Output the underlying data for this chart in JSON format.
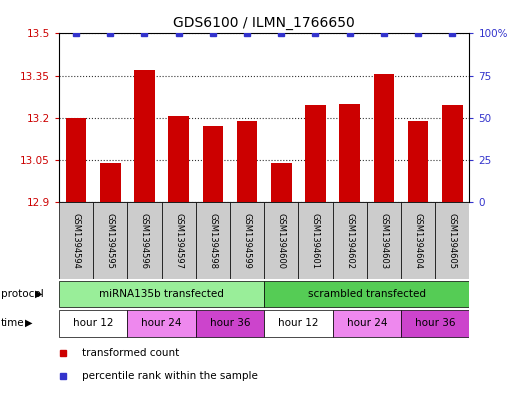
{
  "title": "GDS6100 / ILMN_1766650",
  "samples": [
    "GSM1394594",
    "GSM1394595",
    "GSM1394596",
    "GSM1394597",
    "GSM1394598",
    "GSM1394599",
    "GSM1394600",
    "GSM1394601",
    "GSM1394602",
    "GSM1394603",
    "GSM1394604",
    "GSM1394605"
  ],
  "bar_values": [
    13.2,
    13.04,
    13.37,
    13.205,
    13.17,
    13.19,
    13.04,
    13.245,
    13.25,
    13.355,
    13.19,
    13.245
  ],
  "percentile_values": [
    100,
    100,
    100,
    100,
    100,
    100,
    100,
    100,
    100,
    100,
    100,
    100
  ],
  "bar_color": "#cc0000",
  "percentile_color": "#3333cc",
  "ylim_left": [
    12.9,
    13.5
  ],
  "ylim_right": [
    0,
    100
  ],
  "yticks_left": [
    12.9,
    13.05,
    13.2,
    13.35,
    13.5
  ],
  "yticks_right": [
    0,
    25,
    50,
    75,
    100
  ],
  "ytick_labels_left": [
    "12.9",
    "13.05",
    "13.2",
    "13.35",
    "13.5"
  ],
  "ytick_labels_right": [
    "0",
    "25",
    "50",
    "75",
    "100%"
  ],
  "protocol_groups": [
    {
      "label": "miRNA135b transfected",
      "start": 0,
      "end": 6,
      "color": "#99ee99"
    },
    {
      "label": "scrambled transfected",
      "start": 6,
      "end": 12,
      "color": "#55cc55"
    }
  ],
  "time_groups": [
    {
      "label": "hour 12",
      "start": 0,
      "end": 2,
      "color": "#ffffff"
    },
    {
      "label": "hour 24",
      "start": 2,
      "end": 4,
      "color": "#ee88ee"
    },
    {
      "label": "hour 36",
      "start": 4,
      "end": 6,
      "color": "#cc44cc"
    },
    {
      "label": "hour 12",
      "start": 6,
      "end": 8,
      "color": "#ffffff"
    },
    {
      "label": "hour 24",
      "start": 8,
      "end": 10,
      "color": "#ee88ee"
    },
    {
      "label": "hour 36",
      "start": 10,
      "end": 12,
      "color": "#cc44cc"
    }
  ],
  "legend_items": [
    {
      "label": "transformed count",
      "color": "#cc0000"
    },
    {
      "label": "percentile rank within the sample",
      "color": "#3333cc"
    }
  ],
  "protocol_label": "protocol",
  "time_label": "time",
  "background_color": "#ffffff",
  "sample_box_color": "#cccccc",
  "bar_width": 0.6
}
